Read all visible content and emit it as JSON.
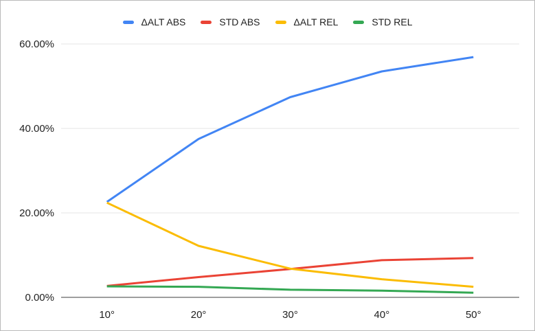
{
  "chart_data": {
    "type": "line",
    "title": "",
    "categories": [
      "10°",
      "20°",
      "30°",
      "40°",
      "50°"
    ],
    "series": [
      {
        "name": "ΔALT ABS",
        "color": "#4285F4",
        "values": [
          22.6,
          37.5,
          47.4,
          53.5,
          56.9
        ]
      },
      {
        "name": "STD ABS",
        "color": "#EA4335",
        "values": [
          2.7,
          4.8,
          6.7,
          8.8,
          9.3
        ]
      },
      {
        "name": "ΔALT REL",
        "color": "#FBBC04",
        "values": [
          22.4,
          12.2,
          6.8,
          4.3,
          2.5
        ]
      },
      {
        "name": "STD REL",
        "color": "#34A853",
        "values": [
          2.6,
          2.5,
          1.8,
          1.6,
          1.1
        ]
      }
    ],
    "x_axis": {
      "ticks": [
        "10°",
        "20°",
        "30°",
        "40°",
        "50°"
      ]
    },
    "y_axis": {
      "ticks": [
        "0.00%",
        "20.00%",
        "40.00%",
        "60.00%"
      ],
      "tick_values": [
        0,
        20,
        40,
        60
      ],
      "min": 0,
      "max": 60,
      "format": "percent"
    },
    "legend_position": "top",
    "grid": true
  },
  "colors": {
    "grid_line": "#e4e4e4",
    "axis_line": "#9e9e9e",
    "text": "#1f1f1f",
    "background": "#ffffff",
    "border": "#b9b9b9"
  }
}
